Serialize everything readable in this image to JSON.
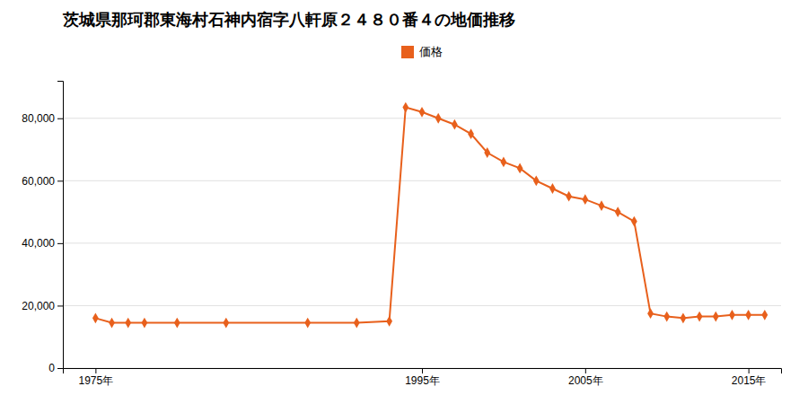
{
  "chart_data": {
    "type": "line",
    "title": "茨城県那珂郡東海村石神内宿字八軒原２４８０番４の地価推移",
    "x": [
      1975,
      1976,
      1977,
      1978,
      1980,
      1983,
      1988,
      1991,
      1993,
      1994,
      1995,
      1996,
      1997,
      1998,
      1999,
      2000,
      2001,
      2002,
      2003,
      2004,
      2005,
      2006,
      2007,
      2008,
      2009,
      2010,
      2011,
      2012,
      2013,
      2014,
      2015,
      2016
    ],
    "series": [
      {
        "name": "価格",
        "color": "#e8601c",
        "marker": "diamond",
        "line_style": "solid",
        "values": [
          16000,
          14500,
          14500,
          14500,
          14500,
          14500,
          14500,
          14500,
          15000,
          83500,
          82000,
          80000,
          78000,
          75000,
          69000,
          66000,
          64000,
          60000,
          57500,
          55000,
          54000,
          52000,
          50000,
          47000,
          17500,
          16500,
          16000,
          16500,
          16500,
          17000,
          17000,
          17000
        ]
      }
    ],
    "xlim": [
      1973,
      2017
    ],
    "xticks": [
      {
        "value": 1975,
        "label": "1975年"
      },
      {
        "value": 1995,
        "label": "1995年"
      },
      {
        "value": 2005,
        "label": "2005年"
      },
      {
        "value": 2015,
        "label": "2015年"
      }
    ],
    "ylim": [
      0,
      92000
    ],
    "yticks": [
      0,
      {
        "value": 20000,
        "label": "20,000"
      },
      {
        "value": 40000,
        "label": "40,000"
      },
      {
        "value": 60000,
        "label": "60,000"
      },
      {
        "value": 80000,
        "label": "80,000"
      }
    ],
    "grid": true,
    "legend": "top"
  }
}
